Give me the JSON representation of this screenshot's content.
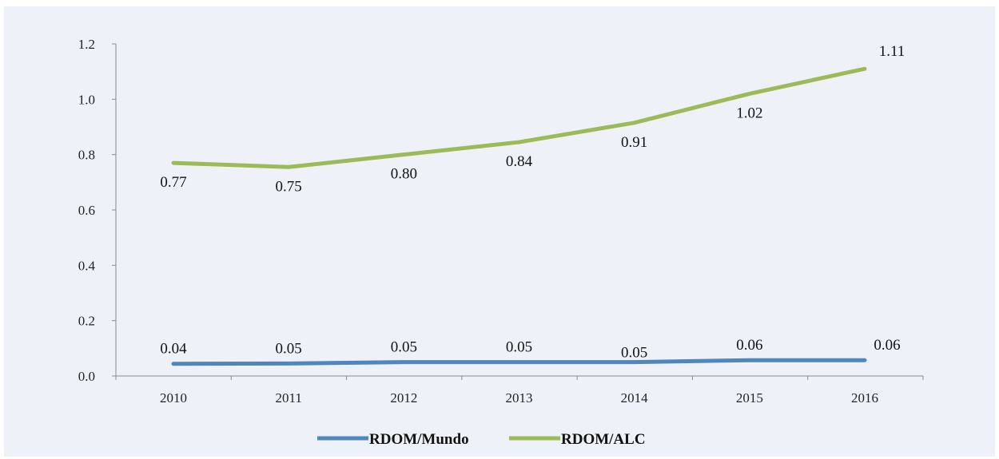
{
  "chart_data": {
    "type": "line",
    "categories": [
      "2010",
      "2011",
      "2012",
      "2013",
      "2014",
      "2015",
      "2016"
    ],
    "ylim": [
      0,
      1.2
    ],
    "yticks": [
      "0.0",
      "0.2",
      "0.4",
      "0.6",
      "0.8",
      "1.0",
      "1.2"
    ],
    "grid": false,
    "legend_position": "bottom",
    "series": [
      {
        "name": "RDOM/Mundo",
        "color": "#4e86bd",
        "values": [
          0.044,
          0.045,
          0.05,
          0.05,
          0.05,
          0.057,
          0.057
        ],
        "labels": [
          "0.04",
          "0.05",
          "0.05",
          "0.05",
          "0.05",
          "0.06",
          "0.06"
        ]
      },
      {
        "name": "RDOM/ALC",
        "color": "#9bbb59",
        "values": [
          0.77,
          0.755,
          0.8,
          0.845,
          0.915,
          1.02,
          1.11
        ],
        "labels": [
          "0.77",
          "0.75",
          "0.80",
          "0.84",
          "0.91",
          "1.02",
          "1.11"
        ]
      }
    ]
  }
}
